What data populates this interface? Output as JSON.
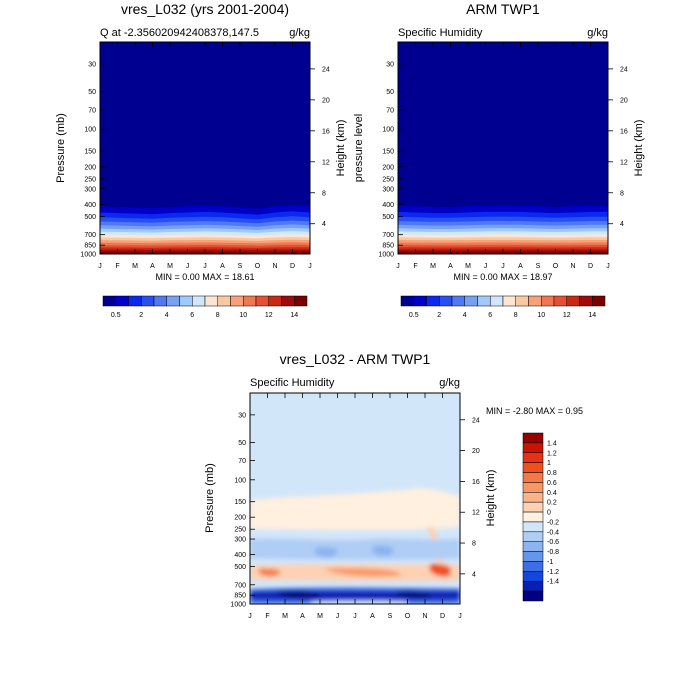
{
  "chart_data": [
    {
      "type": "heatmap",
      "title": "vres_L032 (yrs 2001-2004)",
      "subtitle_left": "Q at -2.356020942408378,147.5",
      "subtitle_right": "g/kg",
      "ylabel": "Pressure (mb)",
      "ylabel_right": "Height (km)",
      "x_ticks": [
        "J",
        "F",
        "M",
        "A",
        "M",
        "J",
        "J",
        "A",
        "S",
        "O",
        "N",
        "D",
        "J"
      ],
      "y_ticks": [
        "30",
        "50",
        "70",
        "100",
        "150",
        "200",
        "250",
        "300",
        "400",
        "500",
        "700",
        "850",
        "1000"
      ],
      "y_ticks_right": [
        "24",
        "20",
        "16",
        "12",
        "8",
        "4"
      ],
      "y_scale": "log-pressure",
      "ylim": [
        1000,
        20
      ],
      "stats": "MIN =  0.00 MAX = 18.61",
      "min": 0.0,
      "max": 18.61,
      "moisture_top_mb": [
        325,
        330,
        335,
        340,
        330,
        325,
        320,
        325,
        335,
        345,
        325,
        315,
        325
      ]
    },
    {
      "type": "heatmap",
      "title": "ARM TWP1",
      "subtitle_left": "Specific Humidity",
      "subtitle_right": "g/kg",
      "ylabel": "pressure level",
      "ylabel_right": "Height (km)",
      "x_ticks": [
        "J",
        "F",
        "M",
        "A",
        "M",
        "J",
        "J",
        "A",
        "S",
        "O",
        "N",
        "D",
        "J"
      ],
      "y_ticks": [
        "30",
        "50",
        "70",
        "100",
        "150",
        "200",
        "250",
        "300",
        "400",
        "500",
        "700",
        "850",
        "1000"
      ],
      "y_ticks_right": [
        "24",
        "20",
        "16",
        "12",
        "8",
        "4"
      ],
      "y_scale": "log-pressure",
      "ylim": [
        1000,
        20
      ],
      "stats": "MIN =  0.00 MAX = 18.97",
      "min": 0.0,
      "max": 18.97,
      "moisture_top_mb": [
        320,
        325,
        330,
        330,
        325,
        320,
        318,
        320,
        325,
        330,
        325,
        320,
        320
      ]
    },
    {
      "type": "heatmap",
      "title": "vres_L032 - ARM TWP1",
      "subtitle_left": "Specific Humidity",
      "subtitle_right": "g/kg",
      "ylabel": "Pressure (mb)",
      "ylabel_right": "Height (km)",
      "x_ticks": [
        "J",
        "F",
        "M",
        "A",
        "M",
        "J",
        "J",
        "A",
        "S",
        "O",
        "N",
        "D",
        "J"
      ],
      "y_ticks": [
        "30",
        "50",
        "70",
        "100",
        "150",
        "200",
        "250",
        "300",
        "400",
        "500",
        "700",
        "850",
        "1000"
      ],
      "y_ticks_right": [
        "24",
        "20",
        "16",
        "12",
        "8",
        "4"
      ],
      "y_scale": "log-pressure",
      "ylim": [
        1000,
        20
      ],
      "stats": "MIN = -2.80 MAX =   0.95",
      "min": -2.8,
      "max": 0.95
    }
  ],
  "colorbars": {
    "absolute": {
      "levels": [
        "0.5",
        "2",
        "4",
        "6",
        "8",
        "10",
        "12",
        "14"
      ],
      "colors": [
        "#000090",
        "#0000c8",
        "#0a28f0",
        "#2850f0",
        "#5078f0",
        "#78a0f0",
        "#a0c8f8",
        "#d2e6fa",
        "#fae6d2",
        "#fac8a0",
        "#f8a078",
        "#f07850",
        "#e65032",
        "#c82814",
        "#a00a0a",
        "#780000"
      ]
    },
    "difference": {
      "levels": [
        "1.4",
        "1.2",
        "1",
        "0.8",
        "0.6",
        "0.4",
        "0.2",
        "0",
        "-0.2",
        "-0.4",
        "-0.6",
        "-0.8",
        "-1",
        "-1.2",
        "-1.4"
      ],
      "colors": [
        "#960000",
        "#c81400",
        "#e63214",
        "#f0501e",
        "#f57846",
        "#fa9664",
        "#fab48c",
        "#fdd2b4",
        "#fff0e0",
        "#d2e6fa",
        "#afcdf5",
        "#8cb4f0",
        "#6496eb",
        "#3c6ee6",
        "#1446dc",
        "#0a1eb4",
        "#000080"
      ]
    }
  }
}
